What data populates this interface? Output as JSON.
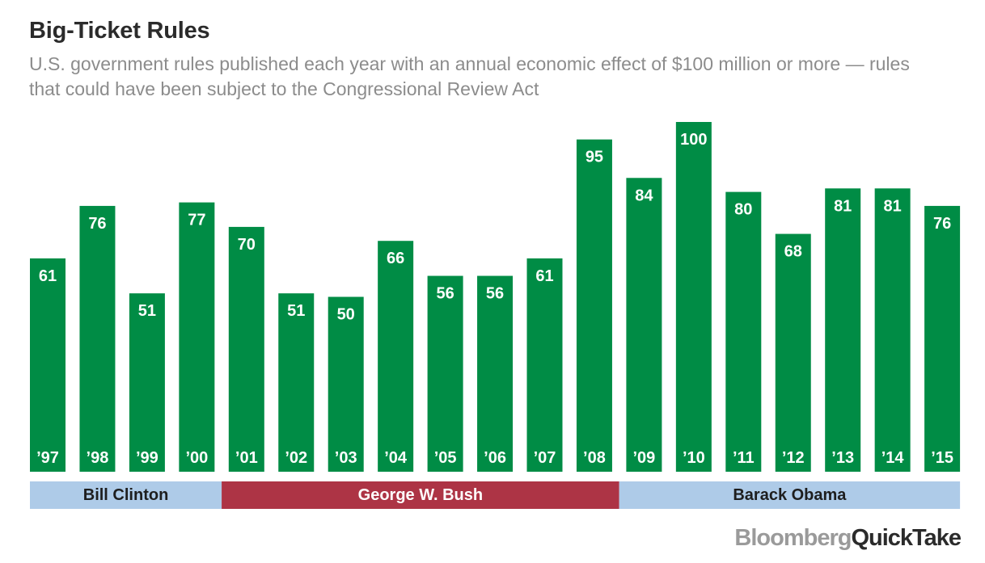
{
  "title": "Big-Ticket Rules",
  "subtitle": "U.S. government rules published each year with an annual economic effect of $100 million or more — rules that could have been subject to the Congressional Review Act",
  "colors": {
    "bar": "#008c45",
    "clinton": "#aecbe8",
    "bush": "#ad3445",
    "obama": "#aecbe8"
  },
  "brand": {
    "part1": "Bloomberg",
    "part2": "QuickTake"
  },
  "chart_data": {
    "type": "bar",
    "categories": [
      "’97",
      "’98",
      "’99",
      "’00",
      "’01",
      "’02",
      "’03",
      "’04",
      "’05",
      "’06",
      "’07",
      "’08",
      "’09",
      "’10",
      "’11",
      "’12",
      "’13",
      "’14",
      "’15"
    ],
    "values": [
      61,
      76,
      51,
      77,
      70,
      51,
      50,
      66,
      56,
      56,
      61,
      95,
      84,
      100,
      80,
      68,
      81,
      81,
      76
    ],
    "ylim": [
      0,
      100
    ],
    "grid": false,
    "title": "Big-Ticket Rules",
    "administrations": [
      {
        "name": "Bill Clinton",
        "start_index": 0,
        "end_index": 3
      },
      {
        "name": "George W. Bush",
        "start_index": 4,
        "end_index": 11
      },
      {
        "name": "Barack Obama",
        "start_index": 12,
        "end_index": 18
      }
    ]
  }
}
